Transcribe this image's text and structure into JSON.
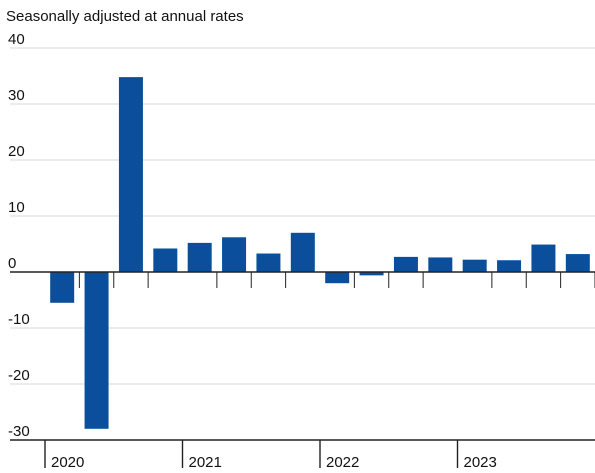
{
  "chart_data": {
    "type": "bar",
    "subtitle": "Seasonally adjusted at annual rates",
    "xlabel": "",
    "ylabel": "",
    "ylim": [
      -30,
      40
    ],
    "yticks": [
      40,
      30,
      20,
      10,
      0,
      -10,
      -20,
      -30
    ],
    "grid": true,
    "categories": [
      "2020 Q1",
      "2020 Q2",
      "2020 Q3",
      "2020 Q4",
      "2021 Q1",
      "2021 Q2",
      "2021 Q3",
      "2021 Q4",
      "2022 Q1",
      "2022 Q2",
      "2022 Q3",
      "2022 Q4",
      "2023 Q1",
      "2023 Q2",
      "2023 Q3",
      "2023 Q4"
    ],
    "values": [
      -5.5,
      -28.0,
      34.8,
      4.2,
      5.2,
      6.2,
      3.3,
      7.0,
      -2.0,
      -0.6,
      2.7,
      2.6,
      2.2,
      2.1,
      4.9,
      3.2
    ],
    "year_labels": [
      "2020",
      "2021",
      "2022",
      "2023"
    ],
    "colors": {
      "bar": "#0b4f9c",
      "grid": "#d9d9d9",
      "axis": "#222222"
    }
  }
}
